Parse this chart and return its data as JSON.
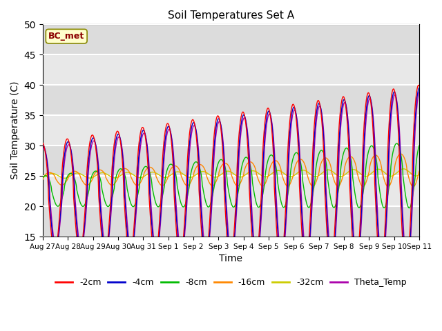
{
  "title": "Soil Temperatures Set A",
  "xlabel": "Time",
  "ylabel": "Soil Temperature (C)",
  "ylim": [
    15,
    50
  ],
  "yticks": [
    15,
    20,
    25,
    30,
    35,
    40,
    45,
    50
  ],
  "annotation_text": "BC_met",
  "annotation_color": "#8B0000",
  "annotation_bg": "#FFFFCC",
  "bg_color": "#EBEBEB",
  "grid_color": "white",
  "series_colors": {
    "-2cm": "#FF0000",
    "-4cm": "#0000CC",
    "-8cm": "#00BB00",
    "-16cm": "#FF8800",
    "-32cm": "#CCCC00",
    "Theta_Temp": "#AA00AA"
  },
  "x_tick_labels": [
    "Aug 27",
    "Aug 28",
    "Aug 29",
    "Aug 30",
    "Aug 31",
    "Sep 1",
    "Sep 2",
    "Sep 3",
    "Sep 4",
    "Sep 5",
    "Sep 6",
    "Sep 7",
    "Sep 8",
    "Sep 9",
    "Sep 10",
    "Sep 11"
  ],
  "n_days": 15,
  "points_per_day": 144
}
